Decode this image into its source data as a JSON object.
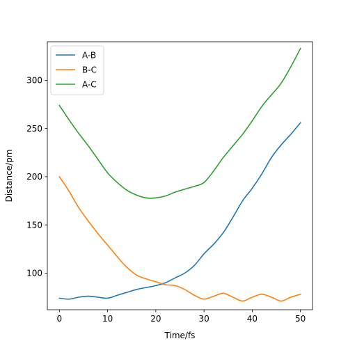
{
  "chart_data": {
    "type": "line",
    "xlabel": "Time/fs",
    "ylabel": "Distance/pm",
    "xlim": [
      -2.5,
      52.5
    ],
    "ylim": [
      62,
      340
    ],
    "xticks": [
      0,
      10,
      20,
      30,
      40,
      50
    ],
    "yticks": [
      100,
      150,
      200,
      250,
      300
    ],
    "grid": false,
    "legend_position": "top-left",
    "x": [
      0,
      2,
      4,
      6,
      8,
      10,
      12,
      14,
      16,
      18,
      20,
      22,
      24,
      26,
      28,
      30,
      32,
      34,
      36,
      38,
      40,
      42,
      44,
      46,
      48,
      50
    ],
    "series": [
      {
        "name": "A-B",
        "color": "#1f77b4",
        "values": [
          74,
          73,
          75,
          76,
          75,
          74,
          77,
          80,
          83,
          85,
          87,
          90,
          95,
          100,
          108,
          120,
          130,
          142,
          158,
          175,
          188,
          203,
          220,
          233,
          244,
          256
        ]
      },
      {
        "name": "B-C",
        "color": "#ff7f0e",
        "values": [
          200,
          185,
          168,
          154,
          141,
          129,
          117,
          106,
          98,
          94,
          91,
          88,
          87,
          83,
          77,
          73,
          76,
          79,
          75,
          71,
          75,
          78,
          75,
          71,
          75,
          78
        ]
      },
      {
        "name": "A-C",
        "color": "#2ca02c",
        "values": [
          274,
          259,
          245,
          232,
          218,
          204,
          194,
          186,
          181,
          178,
          178,
          180,
          184,
          187,
          190,
          194,
          206,
          220,
          232,
          244,
          258,
          273,
          285,
          297,
          314,
          333
        ]
      }
    ]
  }
}
